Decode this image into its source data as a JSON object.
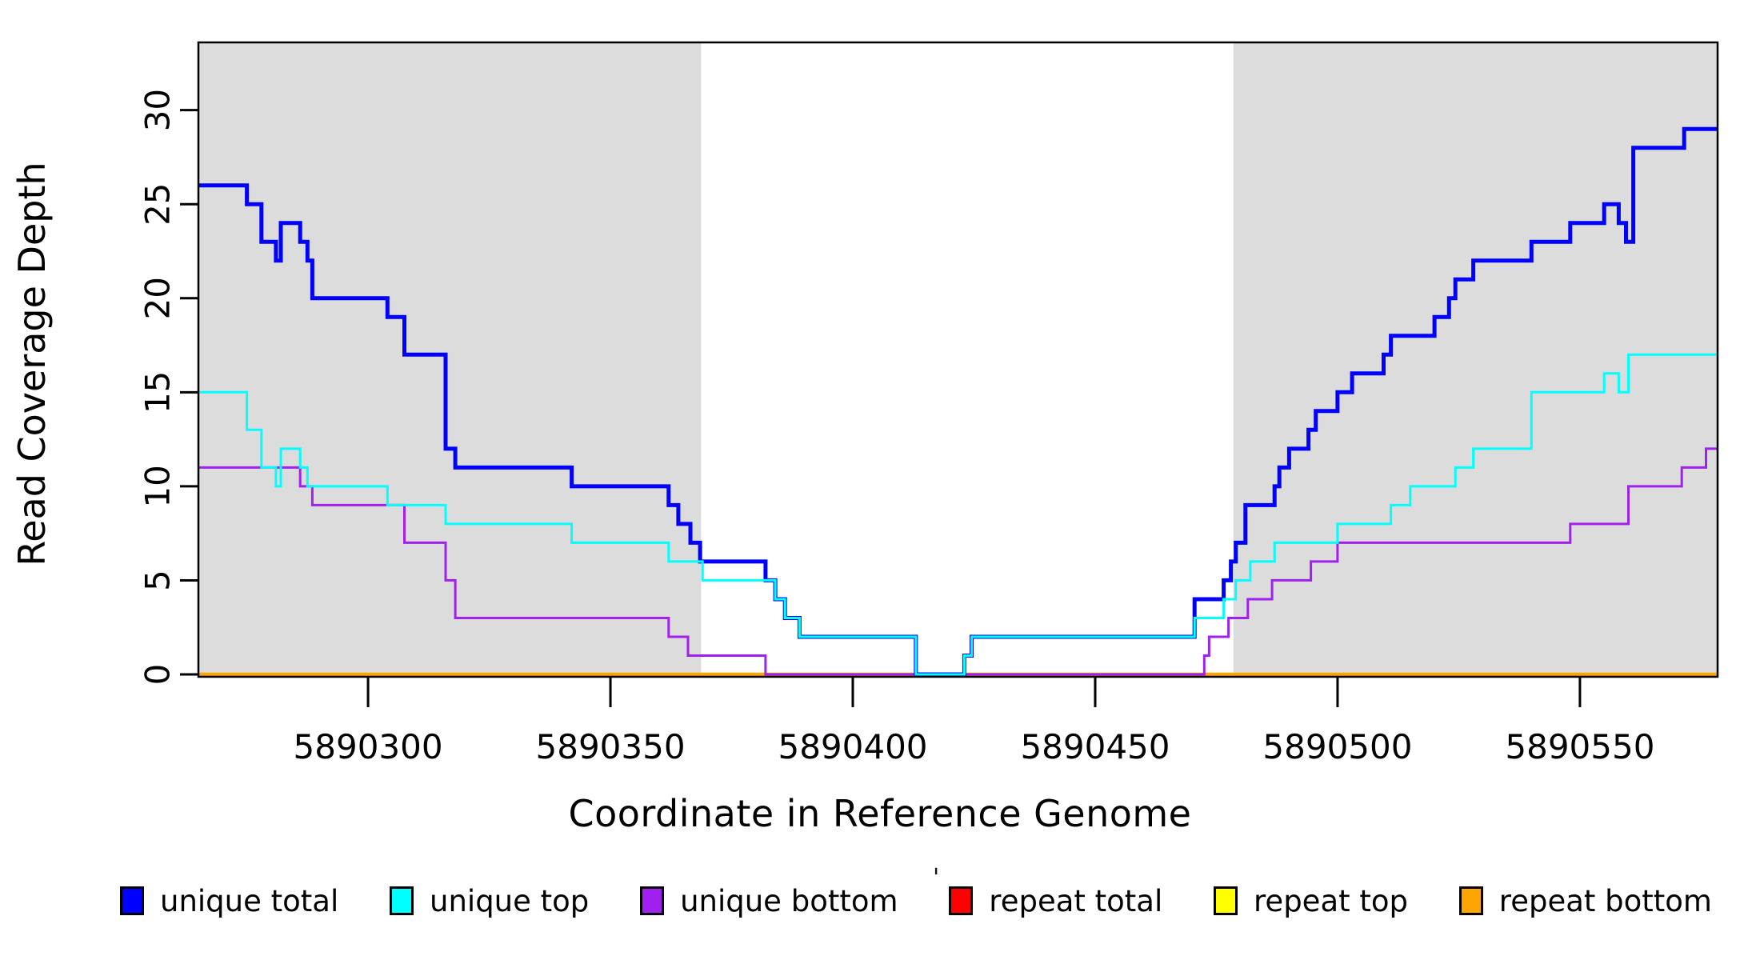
{
  "figure": {
    "x_axis": {
      "label": "Coordinate in Reference Genome",
      "tick_values": [
        5890300,
        5890350,
        5890400,
        5890450,
        5890500,
        5890550
      ],
      "tick_labels": [
        "5890300",
        "5890350",
        "5890400",
        "5890450",
        "5890500",
        "5890550"
      ],
      "domain": [
        5890265,
        5890578.4
      ]
    },
    "y_axis": {
      "label": "Read Coverage Depth",
      "tick_values": [
        0,
        5,
        10,
        15,
        20,
        25,
        30
      ],
      "tick_labels": [
        "0",
        "5",
        "10",
        "15",
        "20",
        "25",
        "30"
      ],
      "domain": [
        0,
        33.6
      ]
    },
    "shade_color": "#DCDCDC",
    "shaded_regions": [
      [
        5890265,
        5890368.7
      ],
      [
        5890478.5,
        5890578.4
      ]
    ],
    "stray_mark": "'"
  },
  "legend": {
    "items": [
      {
        "key": "unique-total",
        "label": "unique total",
        "color": "#0000FF"
      },
      {
        "key": "unique-top",
        "label": "unique top",
        "color": "#00FFFF"
      },
      {
        "key": "unique-bottom",
        "label": "unique bottom",
        "color": "#A020F0"
      },
      {
        "key": "repeat-total",
        "label": "repeat total",
        "color": "#FF0000"
      },
      {
        "key": "repeat-top",
        "label": "repeat top",
        "color": "#FFFF00"
      },
      {
        "key": "repeat-bottom",
        "label": "repeat bottom",
        "color": "#FFA500"
      }
    ]
  },
  "chart_data": {
    "type": "line",
    "line_style": "step-after",
    "title": "",
    "xlabel": "Coordinate in Reference Genome",
    "ylabel": "Read Coverage Depth",
    "xlim": [
      5890265,
      5890578.4
    ],
    "ylim": [
      0,
      33.6
    ],
    "grid": false,
    "legend_position": "bottom",
    "x_end": 5890578.4,
    "series": [
      {
        "name": "repeat total",
        "color": "#FF0000",
        "width": 3,
        "points": [
          [
            5890265,
            0
          ]
        ]
      },
      {
        "name": "repeat top",
        "color": "#FFFF00",
        "width": 3,
        "points": [
          [
            5890265,
            0
          ]
        ]
      },
      {
        "name": "repeat bottom",
        "color": "#FFA500",
        "width": 4.5,
        "points": [
          [
            5890265,
            0
          ]
        ]
      },
      {
        "name": "unique bottom",
        "color": "#A020F0",
        "width": 3,
        "points": [
          [
            5890265,
            11
          ],
          [
            5890286,
            10
          ],
          [
            5890288.5,
            9
          ],
          [
            5890307.5,
            7
          ],
          [
            5890316,
            5
          ],
          [
            5890318,
            3
          ],
          [
            5890362,
            2
          ],
          [
            5890366,
            1
          ],
          [
            5890382,
            0
          ],
          [
            5890472.5,
            1
          ],
          [
            5890473.5,
            2
          ],
          [
            5890477.5,
            3
          ],
          [
            5890481.5,
            4
          ],
          [
            5890486.5,
            5
          ],
          [
            5890494.5,
            6
          ],
          [
            5890500,
            7
          ],
          [
            5890548,
            8
          ],
          [
            5890560,
            10
          ],
          [
            5890571,
            11
          ],
          [
            5890576,
            12
          ]
        ]
      },
      {
        "name": "unique total",
        "color": "#0000FF",
        "width": 5,
        "points": [
          [
            5890265,
            26
          ],
          [
            5890275,
            25
          ],
          [
            5890278,
            23
          ],
          [
            5890281,
            22
          ],
          [
            5890282,
            24
          ],
          [
            5890286,
            23
          ],
          [
            5890287.5,
            22
          ],
          [
            5890288.5,
            20
          ],
          [
            5890304,
            19
          ],
          [
            5890307.5,
            17
          ],
          [
            5890316,
            12
          ],
          [
            5890318,
            11
          ],
          [
            5890342,
            10
          ],
          [
            5890362,
            9
          ],
          [
            5890364,
            8
          ],
          [
            5890366.5,
            7
          ],
          [
            5890368.5,
            6
          ],
          [
            5890382,
            5
          ],
          [
            5890384,
            4
          ],
          [
            5890386,
            3
          ],
          [
            5890389,
            2
          ],
          [
            5890413,
            0
          ],
          [
            5890423,
            1
          ],
          [
            5890424.5,
            2
          ],
          [
            5890470.5,
            4
          ],
          [
            5890476.5,
            5
          ],
          [
            5890478,
            6
          ],
          [
            5890479,
            7
          ],
          [
            5890481,
            9
          ],
          [
            5890487,
            10
          ],
          [
            5890488,
            11
          ],
          [
            5890490,
            12
          ],
          [
            5890494,
            13
          ],
          [
            5890495.5,
            14
          ],
          [
            5890500,
            15
          ],
          [
            5890503,
            16
          ],
          [
            5890509.5,
            17
          ],
          [
            5890511,
            18
          ],
          [
            5890520,
            19
          ],
          [
            5890523,
            20
          ],
          [
            5890524.3,
            21
          ],
          [
            5890528,
            22
          ],
          [
            5890540,
            23
          ],
          [
            5890548,
            24
          ],
          [
            5890555,
            25
          ],
          [
            5890558,
            24
          ],
          [
            5890559.5,
            23
          ],
          [
            5890561,
            28
          ],
          [
            5890571.5,
            29
          ]
        ]
      },
      {
        "name": "unique top",
        "color": "#00FFFF",
        "width": 3,
        "points": [
          [
            5890265,
            15
          ],
          [
            5890275,
            13
          ],
          [
            5890278,
            11
          ],
          [
            5890281,
            10
          ],
          [
            5890282,
            12
          ],
          [
            5890286,
            11
          ],
          [
            5890287.5,
            10
          ],
          [
            5890304,
            9
          ],
          [
            5890316,
            8
          ],
          [
            5890342,
            7
          ],
          [
            5890362,
            6
          ],
          [
            5890369,
            5
          ],
          [
            5890384,
            4
          ],
          [
            5890386,
            3
          ],
          [
            5890389,
            2
          ],
          [
            5890413,
            0
          ],
          [
            5890423,
            1
          ],
          [
            5890424.5,
            2
          ],
          [
            5890470.5,
            3
          ],
          [
            5890476.5,
            4
          ],
          [
            5890479,
            5
          ],
          [
            5890482,
            6
          ],
          [
            5890487,
            7
          ],
          [
            5890500,
            8
          ],
          [
            5890511,
            9
          ],
          [
            5890515,
            10
          ],
          [
            5890524.3,
            11
          ],
          [
            5890528,
            12
          ],
          [
            5890540,
            15
          ],
          [
            5890555,
            16
          ],
          [
            5890558,
            15
          ],
          [
            5890560,
            17
          ]
        ]
      }
    ]
  }
}
